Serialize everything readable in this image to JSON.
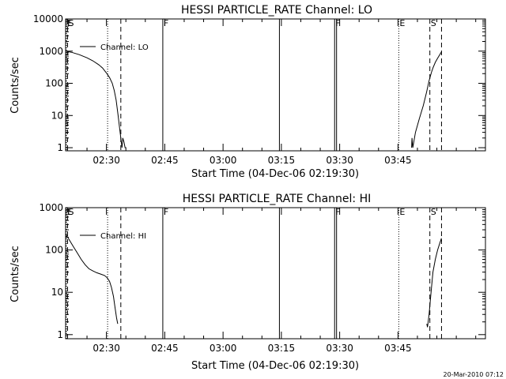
{
  "stamp": "20-Mar-2010 07:12",
  "chart_data": [
    {
      "type": "line",
      "title": "HESSI PARTICLE_RATE Channel: LO",
      "xlabel": "Start Time (04-Dec-06 02:19:30)",
      "ylabel": "Counts/sec",
      "x_ticks": [
        "02:30",
        "02:45",
        "03:00",
        "03:15",
        "03:30",
        "03:45"
      ],
      "x_tick_minutes": [
        630,
        645,
        660,
        675,
        690,
        705
      ],
      "xlim_minutes": [
        619.5,
        727.5
      ],
      "y_scale": "log",
      "ylim": [
        0.8,
        10000
      ],
      "y_ticks": [
        "1",
        "10",
        "100",
        "1000",
        "10000"
      ],
      "y_tick_values": [
        1,
        10,
        100,
        1000,
        10000
      ],
      "legend": {
        "position": "top-left",
        "label": "Channel: LO"
      },
      "markers": [
        {
          "label": "E",
          "minute": 619.7,
          "style": "dotted"
        },
        {
          "label": "S",
          "minute": 620.0,
          "style": "dashed"
        },
        {
          "label": "F",
          "minute": 644.5,
          "style": "solid"
        },
        {
          "label": "",
          "minute": 674.5,
          "style": "solid"
        },
        {
          "label": "F",
          "minute": 688.7,
          "style": "solid"
        },
        {
          "label": "",
          "minute": 689.2,
          "style": "solid"
        },
        {
          "label": "",
          "minute": 630.3,
          "style": "dotted"
        },
        {
          "label": "",
          "minute": 633.7,
          "style": "dashed"
        },
        {
          "label": "E",
          "minute": 705.2,
          "style": "dotted"
        },
        {
          "label": "S",
          "minute": 713.2,
          "style": "dashed"
        },
        {
          "label": "",
          "minute": 716.2,
          "style": "dashed"
        }
      ],
      "series": [
        {
          "segments": [
            {
              "x": [
                619.5,
                621,
                623,
                625,
                626.5,
                628,
                629,
                630,
                630.8,
                631.5,
                632,
                632.5,
                633,
                633.4,
                633.7,
                634.0,
                634.2,
                634.5,
                634.8,
                635.1
              ],
              "y": [
                1000,
                920,
                780,
                620,
                500,
                380,
                300,
                210,
                150,
                100,
                60,
                30,
                10,
                4,
                2,
                1,
                2,
                1.5,
                1,
                1
              ]
            },
            {
              "x": [
                708.5,
                708.6,
                708.8,
                709.5,
                710.5,
                711.5,
                712.3,
                713,
                713.6,
                714,
                714.6,
                715.2,
                715.8,
                716.2
              ],
              "y": [
                1,
                2,
                1,
                3,
                8,
                20,
                50,
                120,
                220,
                300,
                450,
                600,
                800,
                950
              ]
            }
          ]
        }
      ]
    },
    {
      "type": "line",
      "title": "HESSI PARTICLE_RATE Channel: HI",
      "xlabel": "Start Time (04-Dec-06 02:19:30)",
      "ylabel": "Counts/sec",
      "x_ticks": [
        "02:30",
        "02:45",
        "03:00",
        "03:15",
        "03:30",
        "03:45"
      ],
      "x_tick_minutes": [
        630,
        645,
        660,
        675,
        690,
        705
      ],
      "xlim_minutes": [
        619.5,
        727.5
      ],
      "y_scale": "log",
      "ylim": [
        0.8,
        1000
      ],
      "y_ticks": [
        "1",
        "10",
        "100",
        "1000"
      ],
      "y_tick_values": [
        1,
        10,
        100,
        1000
      ],
      "legend": {
        "position": "top-left",
        "label": "Channel: HI"
      },
      "markers": [
        {
          "label": "E",
          "minute": 619.7,
          "style": "dotted"
        },
        {
          "label": "S",
          "minute": 620.0,
          "style": "dashed"
        },
        {
          "label": "F",
          "minute": 644.5,
          "style": "solid"
        },
        {
          "label": "",
          "minute": 674.5,
          "style": "solid"
        },
        {
          "label": "F",
          "minute": 688.7,
          "style": "solid"
        },
        {
          "label": "",
          "minute": 689.2,
          "style": "solid"
        },
        {
          "label": "",
          "minute": 630.3,
          "style": "dotted"
        },
        {
          "label": "",
          "minute": 633.7,
          "style": "dashed"
        },
        {
          "label": "E",
          "minute": 705.2,
          "style": "dotted"
        },
        {
          "label": "S",
          "minute": 713.2,
          "style": "dashed"
        },
        {
          "label": "",
          "minute": 716.2,
          "style": "dashed"
        }
      ],
      "series": [
        {
          "segments": [
            {
              "x": [
                619.5,
                620.5,
                621.5,
                622.5,
                623.5,
                624.5,
                625.5,
                626.5,
                627.5,
                628.5,
                629.5,
                630.2,
                630.8,
                631.3,
                631.8,
                632.2,
                632.6,
                632.9
              ],
              "y": [
                240,
                170,
                120,
                85,
                60,
                45,
                36,
                32,
                29,
                27,
                25,
                22,
                18,
                13,
                8,
                4.5,
                2.5,
                1.8
              ]
            },
            {
              "x": [
                712.4,
                712.6,
                713.0,
                713.5,
                714.0,
                714.6,
                715.2,
                715.8,
                716.2
              ],
              "y": [
                1.8,
                1.5,
                3,
                10,
                30,
                60,
                100,
                150,
                190
              ]
            }
          ]
        }
      ]
    }
  ]
}
